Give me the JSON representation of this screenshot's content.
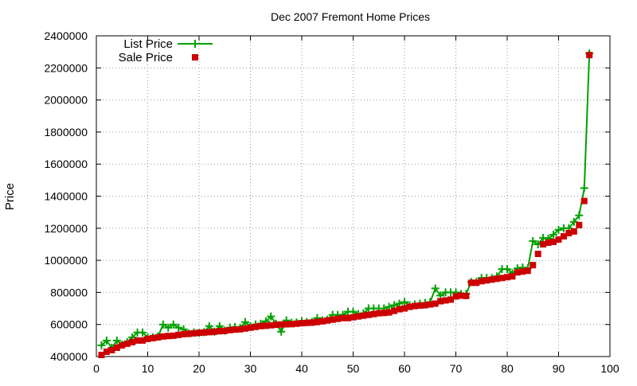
{
  "chart_data": {
    "type": "line",
    "title": "Dec 2007 Fremont Home Prices",
    "xlabel": "",
    "ylabel": "Price",
    "xlim": [
      0,
      100
    ],
    "ylim": [
      400000,
      2400000
    ],
    "xticks": [
      0,
      10,
      20,
      30,
      40,
      50,
      60,
      70,
      80,
      90,
      100
    ],
    "yticks": [
      400000,
      600000,
      800000,
      1000000,
      1200000,
      1400000,
      1600000,
      1800000,
      2000000,
      2200000,
      2400000
    ],
    "grid": true,
    "legend_position": "top-left",
    "series": [
      {
        "name": "List Price",
        "style": "line-with-plus-points",
        "color": "#00a000",
        "x": [
          1,
          2,
          3,
          4,
          5,
          6,
          7,
          8,
          9,
          10,
          11,
          12,
          13,
          14,
          15,
          16,
          17,
          18,
          19,
          20,
          21,
          22,
          23,
          24,
          25,
          26,
          27,
          28,
          29,
          30,
          31,
          32,
          33,
          34,
          35,
          36,
          37,
          38,
          39,
          40,
          41,
          42,
          43,
          44,
          45,
          46,
          47,
          48,
          49,
          50,
          51,
          52,
          53,
          54,
          55,
          56,
          57,
          58,
          59,
          60,
          61,
          62,
          63,
          64,
          65,
          66,
          67,
          68,
          69,
          70,
          71,
          72,
          73,
          74,
          75,
          76,
          77,
          78,
          79,
          80,
          81,
          82,
          83,
          84,
          85,
          86,
          87,
          88,
          89,
          90,
          91,
          92,
          93,
          94,
          95,
          96
        ],
        "y": [
          470000,
          500000,
          455000,
          500000,
          475000,
          490000,
          520000,
          550000,
          550000,
          520000,
          520000,
          525000,
          600000,
          580000,
          600000,
          580000,
          570000,
          545000,
          550000,
          548000,
          552000,
          590000,
          555000,
          590000,
          562000,
          580000,
          585000,
          580000,
          615000,
          590000,
          600000,
          605000,
          620000,
          650000,
          605000,
          555000,
          625000,
          610000,
          612000,
          620000,
          615000,
          615000,
          640000,
          625000,
          630000,
          660000,
          660000,
          660000,
          680000,
          680000,
          665000,
          670000,
          700000,
          700000,
          700000,
          700000,
          710000,
          720000,
          730000,
          740000,
          720000,
          725000,
          730000,
          735000,
          740000,
          825000,
          780000,
          800000,
          800000,
          800000,
          790000,
          790000,
          865000,
          865000,
          890000,
          890000,
          890000,
          900000,
          945000,
          945000,
          920000,
          950000,
          955000,
          950000,
          1120000,
          1100000,
          1140000,
          1135000,
          1160000,
          1190000,
          1200000,
          1200000,
          1240000,
          1280000,
          1450000,
          2290000
        ]
      },
      {
        "name": "Sale Price",
        "style": "square-points",
        "color": "#cc0000",
        "x": [
          1,
          2,
          3,
          4,
          5,
          6,
          7,
          8,
          9,
          10,
          11,
          12,
          13,
          14,
          15,
          16,
          17,
          18,
          19,
          20,
          21,
          22,
          23,
          24,
          25,
          26,
          27,
          28,
          29,
          30,
          31,
          32,
          33,
          34,
          35,
          36,
          37,
          38,
          39,
          40,
          41,
          42,
          43,
          44,
          45,
          46,
          47,
          48,
          49,
          50,
          51,
          52,
          53,
          54,
          55,
          56,
          57,
          58,
          59,
          60,
          61,
          62,
          63,
          64,
          65,
          66,
          67,
          68,
          69,
          70,
          71,
          72,
          73,
          74,
          75,
          76,
          77,
          78,
          79,
          80,
          81,
          82,
          83,
          84,
          85,
          86,
          87,
          88,
          89,
          90,
          91,
          92,
          93,
          94,
          95,
          96
        ],
        "y": [
          410000,
          430000,
          440000,
          455000,
          470000,
          480000,
          490000,
          500000,
          500000,
          510000,
          515000,
          520000,
          525000,
          528000,
          530000,
          535000,
          540000,
          542000,
          545000,
          548000,
          550000,
          552000,
          555000,
          558000,
          560000,
          565000,
          568000,
          570000,
          575000,
          580000,
          585000,
          590000,
          592000,
          595000,
          598000,
          600000,
          601000,
          602000,
          605000,
          608000,
          610000,
          612000,
          615000,
          620000,
          625000,
          630000,
          635000,
          640000,
          640000,
          645000,
          650000,
          655000,
          660000,
          665000,
          670000,
          672000,
          675000,
          685000,
          695000,
          700000,
          710000,
          715000,
          718000,
          720000,
          725000,
          730000,
          745000,
          750000,
          755000,
          775000,
          780000,
          778000,
          860000,
          860000,
          870000,
          875000,
          880000,
          885000,
          890000,
          895000,
          900000,
          925000,
          930000,
          935000,
          970000,
          1040000,
          1100000,
          1110000,
          1115000,
          1130000,
          1150000,
          1170000,
          1180000,
          1220000,
          1370000,
          2280000
        ]
      }
    ]
  }
}
